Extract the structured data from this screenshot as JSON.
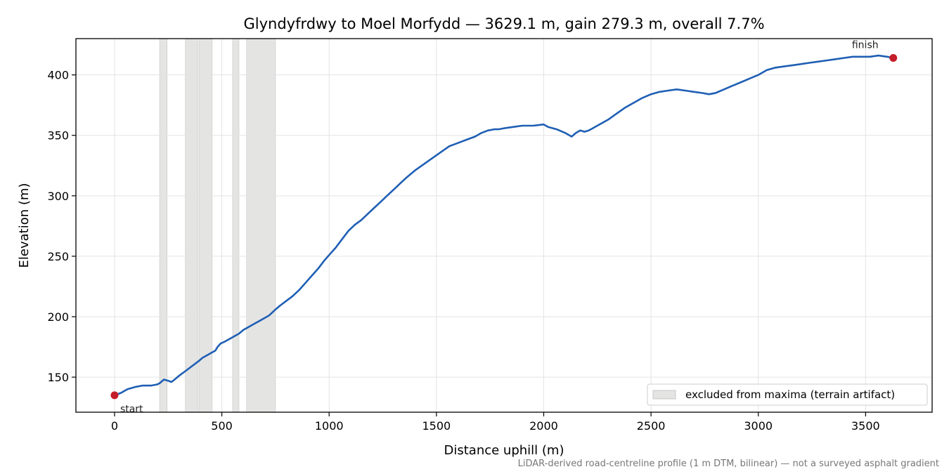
{
  "chart_data": {
    "type": "line",
    "title": "Glyndyfrdwy to Moel Morfydd — 3629.1 m, gain 279.3 m, overall 7.7%",
    "xlabel": "Distance uphill (m)",
    "ylabel": "Elevation (m)",
    "xlim": [
      -180,
      3810
    ],
    "ylim": [
      121,
      430
    ],
    "xticks": [
      0,
      500,
      1000,
      1500,
      2000,
      2500,
      3000,
      3500
    ],
    "yticks": [
      150,
      200,
      250,
      300,
      350,
      400
    ],
    "grid": true,
    "legend_position": "bottom-right",
    "excluded_label": "excluded from maxima (terrain artifact)",
    "excluded_regions": [
      [
        210,
        245
      ],
      [
        330,
        390
      ],
      [
        395,
        455
      ],
      [
        550,
        580
      ],
      [
        615,
        750
      ]
    ],
    "series": [
      {
        "color": "#1f5fb4",
        "x": [
          0,
          30,
          60,
          100,
          130,
          170,
          200,
          210,
          230,
          250,
          265,
          280,
          300,
          330,
          360,
          390,
          410,
          430,
          450,
          470,
          480,
          495,
          510,
          540,
          560,
          580,
          600,
          620,
          650,
          680,
          700,
          720,
          750,
          770,
          800,
          830,
          860,
          890,
          920,
          950,
          980,
          1000,
          1030,
          1060,
          1090,
          1120,
          1150,
          1180,
          1210,
          1240,
          1270,
          1300,
          1330,
          1360,
          1400,
          1440,
          1480,
          1520,
          1560,
          1590,
          1620,
          1650,
          1680,
          1710,
          1740,
          1770,
          1790,
          1820,
          1860,
          1900,
          1950,
          2000,
          2020,
          2060,
          2100,
          2130,
          2150,
          2170,
          2190,
          2210,
          2230,
          2260,
          2300,
          2340,
          2380,
          2420,
          2460,
          2500,
          2540,
          2580,
          2620,
          2660,
          2700,
          2740,
          2770,
          2800,
          2840,
          2880,
          2920,
          2960,
          3000,
          3040,
          3080,
          3120,
          3160,
          3200,
          3240,
          3280,
          3320,
          3360,
          3400,
          3440,
          3480,
          3520,
          3560,
          3600,
          3629
        ],
        "y": [
          135,
          137,
          140,
          142,
          143,
          143,
          144,
          145,
          148,
          147,
          146,
          148,
          151,
          155,
          159,
          163,
          166,
          168,
          170,
          172,
          175,
          178,
          179,
          182,
          184,
          186,
          189,
          191,
          194,
          197,
          199,
          201,
          206,
          209,
          213,
          217,
          222,
          228,
          234,
          240,
          247,
          251,
          257,
          264,
          271,
          276,
          280,
          285,
          290,
          295,
          300,
          305,
          310,
          315,
          321,
          326,
          331,
          336,
          341,
          343,
          345,
          347,
          349,
          352,
          354,
          355,
          355,
          356,
          357,
          358,
          358,
          359,
          357,
          355,
          352,
          349,
          352,
          354,
          353,
          354,
          356,
          359,
          363,
          368,
          373,
          377,
          381,
          384,
          386,
          387,
          388,
          387,
          386,
          385,
          384,
          385,
          388,
          391,
          394,
          397,
          400,
          404,
          406,
          407,
          408,
          409,
          410,
          411,
          412,
          413,
          414,
          415,
          415,
          415,
          416,
          415,
          414
        ]
      }
    ],
    "markers": [
      {
        "label": "start",
        "x": 0,
        "y": 135,
        "color": "#c41e2a"
      },
      {
        "label": "finish",
        "x": 3629,
        "y": 414,
        "color": "#c41e2a"
      }
    ]
  },
  "footnote": "LiDAR-derived road-centreline profile (1 m DTM, bilinear) — not a surveyed asphalt gradient"
}
